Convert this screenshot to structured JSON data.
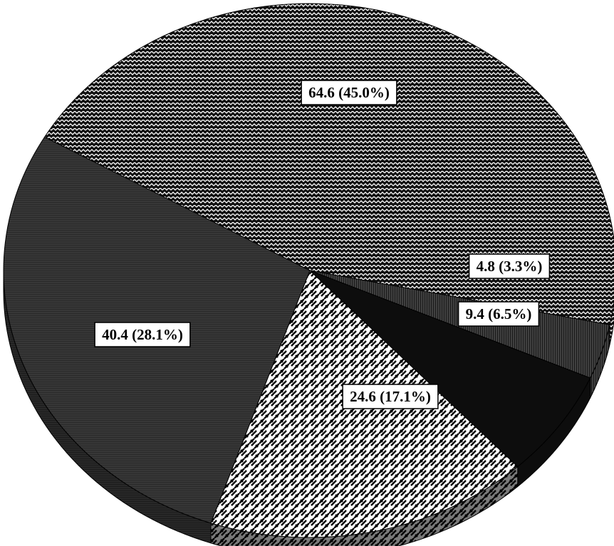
{
  "chart_data": {
    "type": "pie",
    "three_d": true,
    "slices": [
      {
        "value": 64.6,
        "percent": "45.0%",
        "label": "64.6 (45.0%)",
        "color": "#111111",
        "pattern": "zigzag"
      },
      {
        "value": 4.8,
        "percent": "3.3%",
        "label": "4.8 (3.3%)",
        "color": "#1a1a1a",
        "pattern": "fine-vertical"
      },
      {
        "value": 9.4,
        "percent": "6.5%",
        "label": "9.4 (6.5%)",
        "color": "#0d0d0d",
        "pattern": "solid"
      },
      {
        "value": 24.6,
        "percent": "17.1%",
        "label": "24.6 (17.1%)",
        "color": "#ffffff",
        "pattern": "weave"
      },
      {
        "value": 40.4,
        "percent": "28.1%",
        "label": "40.4 (28.1%)",
        "color": "#2a2a2a",
        "pattern": "fine-horizontal"
      }
    ],
    "legend": "none",
    "title": ""
  }
}
